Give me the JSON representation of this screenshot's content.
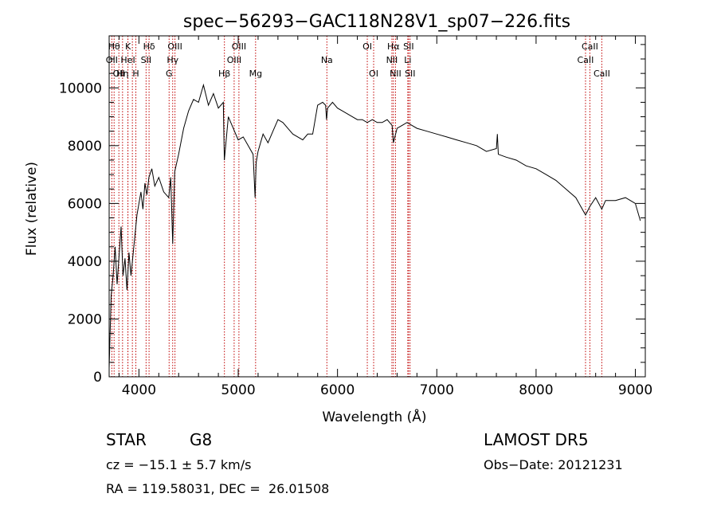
{
  "chart_data": {
    "type": "line",
    "title": "spec−56293−GAC118N28V1_sp07−226.fits",
    "xlabel": "Wavelength (Å)",
    "ylabel": "Flux (relative)",
    "xlim": [
      3700,
      9100
    ],
    "ylim": [
      0,
      11800
    ],
    "xticks": [
      4000,
      5000,
      6000,
      7000,
      8000,
      9000
    ],
    "yticks": [
      0,
      2000,
      4000,
      6000,
      8000,
      10000
    ],
    "grid": false,
    "series": [
      {
        "x": [
          3700,
          3720,
          3740,
          3760,
          3780,
          3800,
          3820,
          3840,
          3860,
          3880,
          3900,
          3920,
          3940,
          3960,
          3980,
          4000,
          4020,
          4040,
          4060,
          4080,
          4100,
          4130,
          4160,
          4200,
          4250,
          4300,
          4320,
          4340,
          4360,
          4400,
          4450,
          4500,
          4550,
          4600,
          4650,
          4700,
          4750,
          4800,
          4850,
          4860,
          4900,
          4950,
          5000,
          5050,
          5100,
          5150,
          5170,
          5180,
          5200,
          5250,
          5300,
          5350,
          5400,
          5450,
          5500,
          5550,
          5600,
          5650,
          5700,
          5750,
          5800,
          5850,
          5880,
          5890,
          5900,
          5950,
          6000,
          6050,
          6100,
          6150,
          6200,
          6250,
          6300,
          6350,
          6400,
          6450,
          6500,
          6550,
          6563,
          6600,
          6650,
          6700,
          6750,
          6800,
          6900,
          7000,
          7100,
          7200,
          7300,
          7400,
          7500,
          7600,
          7610,
          7620,
          7700,
          7800,
          7900,
          8000,
          8100,
          8200,
          8300,
          8400,
          8498,
          8542,
          8600,
          8662,
          8700,
          8800,
          8900,
          9000,
          9050
        ],
        "values": [
          300,
          2800,
          3500,
          4500,
          3200,
          4200,
          5200,
          3500,
          4100,
          3000,
          4300,
          3500,
          4200,
          4900,
          5600,
          6000,
          6400,
          5800,
          6700,
          6300,
          6900,
          7200,
          6600,
          6900,
          6400,
          6200,
          6900,
          4600,
          7100,
          7700,
          8600,
          9200,
          9600,
          9500,
          10100,
          9400,
          9800,
          9300,
          9500,
          7500,
          9000,
          8600,
          8200,
          8300,
          8000,
          7700,
          6200,
          7400,
          7800,
          8400,
          8100,
          8500,
          8900,
          8800,
          8600,
          8400,
          8300,
          8200,
          8400,
          8400,
          9400,
          9500,
          9400,
          8900,
          9300,
          9500,
          9300,
          9200,
          9100,
          9000,
          8900,
          8900,
          8800,
          8900,
          8800,
          8800,
          8900,
          8700,
          8100,
          8600,
          8700,
          8800,
          8700,
          8600,
          8500,
          8400,
          8300,
          8200,
          8100,
          8000,
          7800,
          7900,
          8400,
          7700,
          7600,
          7500,
          7300,
          7200,
          7000,
          6800,
          6500,
          6200,
          5600,
          5900,
          6200,
          5800,
          6100,
          6100,
          6200,
          6000,
          5400
        ]
      }
    ],
    "lines": [
      {
        "x": 3727,
        "label": "OII",
        "row": 2
      },
      {
        "x": 3750,
        "label": "Hθ",
        "row": 1
      },
      {
        "x": 3798,
        "label": "OII",
        "row": 3
      },
      {
        "x": 3835,
        "label": "Hη",
        "row": 3
      },
      {
        "x": 3889,
        "label": "K",
        "row": 1
      },
      {
        "x": 3889,
        "label": "HeI",
        "row": 2
      },
      {
        "x": 3934,
        "label": "",
        "row": 0
      },
      {
        "x": 3969,
        "label": "H",
        "row": 3
      },
      {
        "x": 4072,
        "label": "SII",
        "row": 2
      },
      {
        "x": 4102,
        "label": "Hδ",
        "row": 1
      },
      {
        "x": 4304,
        "label": "G",
        "row": 3
      },
      {
        "x": 4340,
        "label": "Hγ",
        "row": 2
      },
      {
        "x": 4363,
        "label": "OIII",
        "row": 1
      },
      {
        "x": 4861,
        "label": "Hβ",
        "row": 3
      },
      {
        "x": 4959,
        "label": "OIII",
        "row": 2
      },
      {
        "x": 5007,
        "label": "OIII",
        "row": 1
      },
      {
        "x": 5175,
        "label": "Mg",
        "row": 3
      },
      {
        "x": 5893,
        "label": "Na",
        "row": 2
      },
      {
        "x": 6300,
        "label": "OI",
        "row": 1
      },
      {
        "x": 6364,
        "label": "OI",
        "row": 3
      },
      {
        "x": 6548,
        "label": "NII",
        "row": 2
      },
      {
        "x": 6563,
        "label": "Hα",
        "row": 1
      },
      {
        "x": 6584,
        "label": "NII",
        "row": 3
      },
      {
        "x": 6708,
        "label": "Li",
        "row": 2
      },
      {
        "x": 6716,
        "label": "SII",
        "row": 1
      },
      {
        "x": 6731,
        "label": "SII",
        "row": 3
      },
      {
        "x": 8498,
        "label": "CaII",
        "row": 2
      },
      {
        "x": 8542,
        "label": "CaII",
        "row": 1
      },
      {
        "x": 8662,
        "label": "CaII",
        "row": 3
      }
    ]
  },
  "info": {
    "class": "STAR",
    "subclass": "G8",
    "survey": "LAMOST DR5",
    "cz": "cz = −15.1 ± 5.7 km/s",
    "obs_date": "Obs−Date: 20121231",
    "coords": "RA = 119.58031, DEC =  26.01508"
  },
  "colors": {
    "spectrum": "#000000",
    "line_markers": "#c00000",
    "axes": "#000000"
  }
}
